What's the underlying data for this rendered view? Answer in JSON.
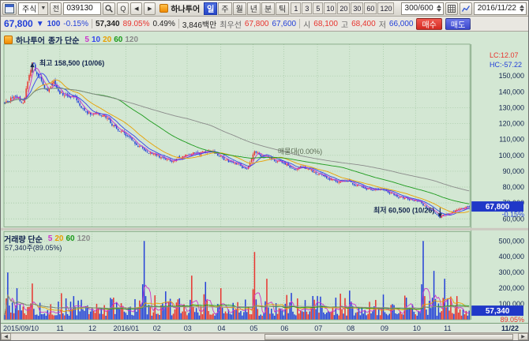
{
  "toolbar": {
    "asset_type": "주식",
    "flag_label": "전",
    "code": "039130",
    "q_label": "Q",
    "prev_arrow": "◀",
    "next_arrow": "▶",
    "stock_name": "하나투어",
    "period_tabs": [
      "일",
      "주",
      "월",
      "년",
      "분",
      "틱"
    ],
    "active_period": "일",
    "minute_buttons": [
      "1",
      "3",
      "5",
      "10",
      "20",
      "30",
      "60",
      "120"
    ],
    "bar_count": "300/600",
    "date": "2016/11/22"
  },
  "quote": {
    "price": "67,800",
    "change_arrow": "▼",
    "change": "100",
    "change_pct": "-0.15%",
    "volume": "57,340",
    "volume_ratio": "89.05%",
    "turnover_ratio": "0.49%",
    "trade_value": "3,846백만",
    "best_label": "최우선",
    "best_ask": "67,800",
    "best_bid": "67,600",
    "open_label": "시",
    "open": "68,100",
    "high_label": "고",
    "high": "68,400",
    "low_label": "저",
    "low": "66,000",
    "buy_label": "매수",
    "sell_label": "매도"
  },
  "chart_data": {
    "type": "candlestick",
    "symbol": "039130",
    "name": "하나투어",
    "period": "일봉",
    "price_legend": {
      "name": "하나투어",
      "label": "종가 단순"
    },
    "volume_legend": {
      "label": "거래량 단순",
      "current": "57,340주(89.05%)"
    },
    "price_ma": [
      {
        "p": "5",
        "c": "#cc33cc"
      },
      {
        "p": "10",
        "c": "#3344ee"
      },
      {
        "p": "20",
        "c": "#e8a000"
      },
      {
        "p": "60",
        "c": "#1a9a1a"
      },
      {
        "p": "120",
        "c": "#8a8a8a"
      }
    ],
    "volume_ma": [
      {
        "p": "5",
        "c": "#cc33cc"
      },
      {
        "p": "20",
        "c": "#e8a000"
      },
      {
        "p": "60",
        "c": "#1a9a1a"
      },
      {
        "p": "120",
        "c": "#8a8a8a"
      }
    ],
    "annotations": {
      "high": "최고 158,500 (10/06)",
      "low": "최저 60,500 (10/26)",
      "profile": "매물대(0.00%)",
      "lc": "LC:12.07",
      "hc": "HC:-57.22"
    },
    "price_axis": {
      "min": 55000,
      "max": 170000,
      "ticks": [
        150000,
        140000,
        130000,
        120000,
        110000,
        100000,
        90000,
        80000,
        70000,
        60000
      ]
    },
    "volume_axis": {
      "max": 560000,
      "ticks": [
        500000,
        400000,
        300000,
        200000,
        100000
      ]
    },
    "bars": 304,
    "high_point": {
      "i": 18,
      "price": 158500,
      "date": "2015/10/06"
    },
    "low_point": {
      "i": 284,
      "price": 60500,
      "date": "2016/10/26"
    },
    "last_bar": {
      "open": 68100,
      "high": 68400,
      "low": 66000,
      "close": 67800,
      "volume": 57340
    },
    "last_price": "67,800",
    "last_change_pct": "-0.15%",
    "last_volume": "57,340",
    "last_volume_pct": "89.05%",
    "price_anchors": [
      [
        0,
        131000
      ],
      [
        6,
        137000
      ],
      [
        12,
        133000
      ],
      [
        18,
        158500
      ],
      [
        22,
        149000
      ],
      [
        28,
        143000
      ],
      [
        32,
        148000
      ],
      [
        36,
        141000
      ],
      [
        48,
        134000
      ],
      [
        57,
        128000
      ],
      [
        68,
        121000
      ],
      [
        79,
        113000
      ],
      [
        88,
        106000
      ],
      [
        99,
        99000
      ],
      [
        108,
        95000
      ],
      [
        119,
        100000
      ],
      [
        130,
        103000
      ],
      [
        141,
        98000
      ],
      [
        152,
        93000
      ],
      [
        158,
        90000
      ],
      [
        163,
        104000
      ],
      [
        170,
        100000
      ],
      [
        178,
        97000
      ],
      [
        182,
        95500
      ],
      [
        196,
        91000
      ],
      [
        204,
        88000
      ],
      [
        216,
        85000
      ],
      [
        225,
        83000
      ],
      [
        238,
        79000
      ],
      [
        247,
        76000
      ],
      [
        258,
        73000
      ],
      [
        268,
        71000
      ],
      [
        278,
        66000
      ],
      [
        284,
        60500
      ],
      [
        290,
        64500
      ],
      [
        296,
        66500
      ],
      [
        303,
        67800
      ]
    ],
    "volume_spikes": [
      [
        2,
        300000
      ],
      [
        8,
        200000
      ],
      [
        18,
        230000
      ],
      [
        45,
        150000
      ],
      [
        70,
        130000
      ],
      [
        91,
        500000
      ],
      [
        105,
        180000
      ],
      [
        122,
        280000
      ],
      [
        131,
        240000
      ],
      [
        141,
        200000
      ],
      [
        163,
        430000
      ],
      [
        171,
        260000
      ],
      [
        187,
        170000
      ],
      [
        204,
        150000
      ],
      [
        225,
        185000
      ],
      [
        247,
        160000
      ],
      [
        262,
        140000
      ],
      [
        273,
        500000
      ],
      [
        280,
        310000
      ],
      [
        287,
        260000
      ],
      [
        295,
        150000
      ]
    ],
    "x_ticks": [
      {
        "i": 0,
        "label": "2015/09/10"
      },
      {
        "i": 15,
        "label": ""
      },
      {
        "i": 36,
        "label": "11"
      },
      {
        "i": 57,
        "label": "12"
      },
      {
        "i": 79,
        "label": "2016/01"
      },
      {
        "i": 99,
        "label": "02"
      },
      {
        "i": 119,
        "label": "03"
      },
      {
        "i": 141,
        "label": "04"
      },
      {
        "i": 162,
        "label": "05"
      },
      {
        "i": 182,
        "label": "06"
      },
      {
        "i": 204,
        "label": "07"
      },
      {
        "i": 225,
        "label": "08"
      },
      {
        "i": 247,
        "label": "09"
      },
      {
        "i": 268,
        "label": "10"
      },
      {
        "i": 288,
        "label": "11"
      }
    ],
    "x_end_label": "11/22",
    "colors": {
      "up": "#e8332e",
      "down": "#2340d8",
      "grid": "#9cc49c",
      "border": "#7aa07a",
      "axis_text": "#14264e",
      "tag_bg": "#2038c8",
      "anno": "#14264e",
      "profile_text": "#5a6a52"
    }
  }
}
